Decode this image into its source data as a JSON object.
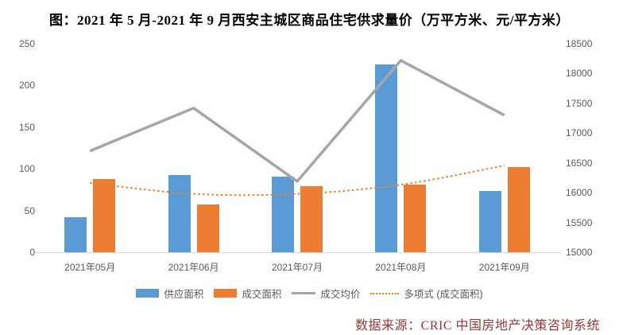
{
  "title": "图：2021 年 5 月-2021 年 9 月西安主城区商品住宅供求量价（万平方米、元/平方米）",
  "source": "数据来源：CRIC 中国房地产决策咨询系统",
  "colors": {
    "supply_bar": "#5B9BD5",
    "transaction_bar": "#ED7D31",
    "price_line": "#A6A6A6",
    "trend_dotted": "#ED7D31",
    "axis_text": "#595959",
    "baseline": "#D9D9D9",
    "title_text": "#000000",
    "source_text": "#953735"
  },
  "chart_data": {
    "type": "bar",
    "subtype": "dual-axis combo (clustered bars + line + dotted polynomial trend)",
    "title": "图：2021 年 5 月-2021 年 9 月西安主城区商品住宅供求量价（万平方米、元/平方米）",
    "categories": [
      "2021年05月",
      "2021年06月",
      "2021年07月",
      "2021年08月",
      "2021年09月"
    ],
    "series": [
      {
        "name": "供应面积",
        "kind": "bar",
        "axis": "left",
        "color": "#5B9BD5",
        "values": [
          42,
          93,
          91,
          225,
          73
        ]
      },
      {
        "name": "成交面积",
        "kind": "bar",
        "axis": "left",
        "color": "#ED7D31",
        "values": [
          88,
          57,
          79,
          81,
          102
        ]
      },
      {
        "name": "成交均价",
        "kind": "line",
        "axis": "right",
        "color": "#A6A6A6",
        "values": [
          16700,
          17420,
          16190,
          18220,
          17300
        ]
      },
      {
        "name": "多项式 (成交面积)",
        "kind": "dotted-trend",
        "axis": "left",
        "color": "#ED7D31",
        "values": [
          83,
          70,
          70,
          81,
          104
        ]
      }
    ],
    "left_axis": {
      "min": 0,
      "max": 250,
      "ticks": [
        0,
        50,
        100,
        150,
        200,
        250
      ],
      "unit": "万平方米"
    },
    "right_axis": {
      "min": 15000,
      "max": 18500,
      "ticks": [
        15000,
        15500,
        16000,
        16500,
        17000,
        17500,
        18000,
        18500
      ],
      "unit": "元/平方米"
    },
    "grid": false,
    "legend_position": "bottom"
  }
}
